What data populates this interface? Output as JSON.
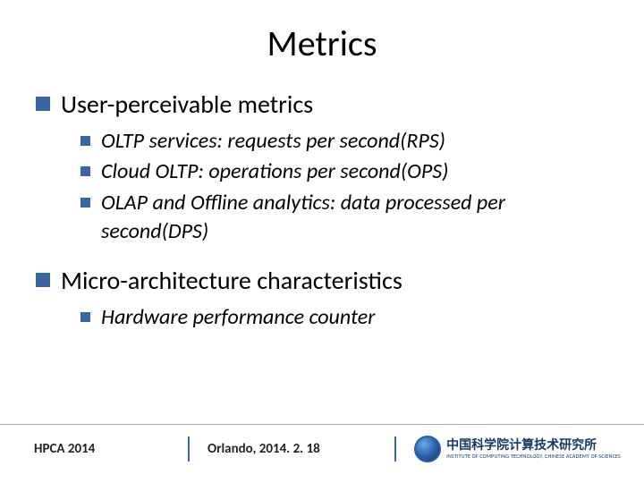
{
  "colors": {
    "bullet": "#3a66a6",
    "divider": "#3a66a6",
    "footer_rule": "#9aa6b2",
    "text": "#000000",
    "background": "#ffffff"
  },
  "typography": {
    "title_fontsize": 40,
    "lvl1_fontsize": 28,
    "lvl2_fontsize": 24,
    "lvl2_italic": true,
    "footer_fontsize": 15,
    "footer_bold": true,
    "font_family": "Calibri"
  },
  "title": "Metrics",
  "sections": [
    {
      "label": "User-perceivable metrics",
      "items": [
        "OLTP services:  requests per second(RPS)",
        "Cloud OLTP: operations per second(OPS)",
        "OLAP and Offline analytics: data processed per second(DPS)"
      ]
    },
    {
      "label": "Micro-architecture characteristics",
      "items": [
        "Hardware performance counter"
      ]
    }
  ],
  "footer": {
    "venue": "HPCA  2014",
    "location": "Orlando, 2014. 2. 18",
    "logo_zh": "中国科学院计算技术研究所",
    "logo_en": "INSTITUTE OF COMPUTING TECHNOLOGY, CHINESE ACADEMY OF SCIENCES"
  }
}
